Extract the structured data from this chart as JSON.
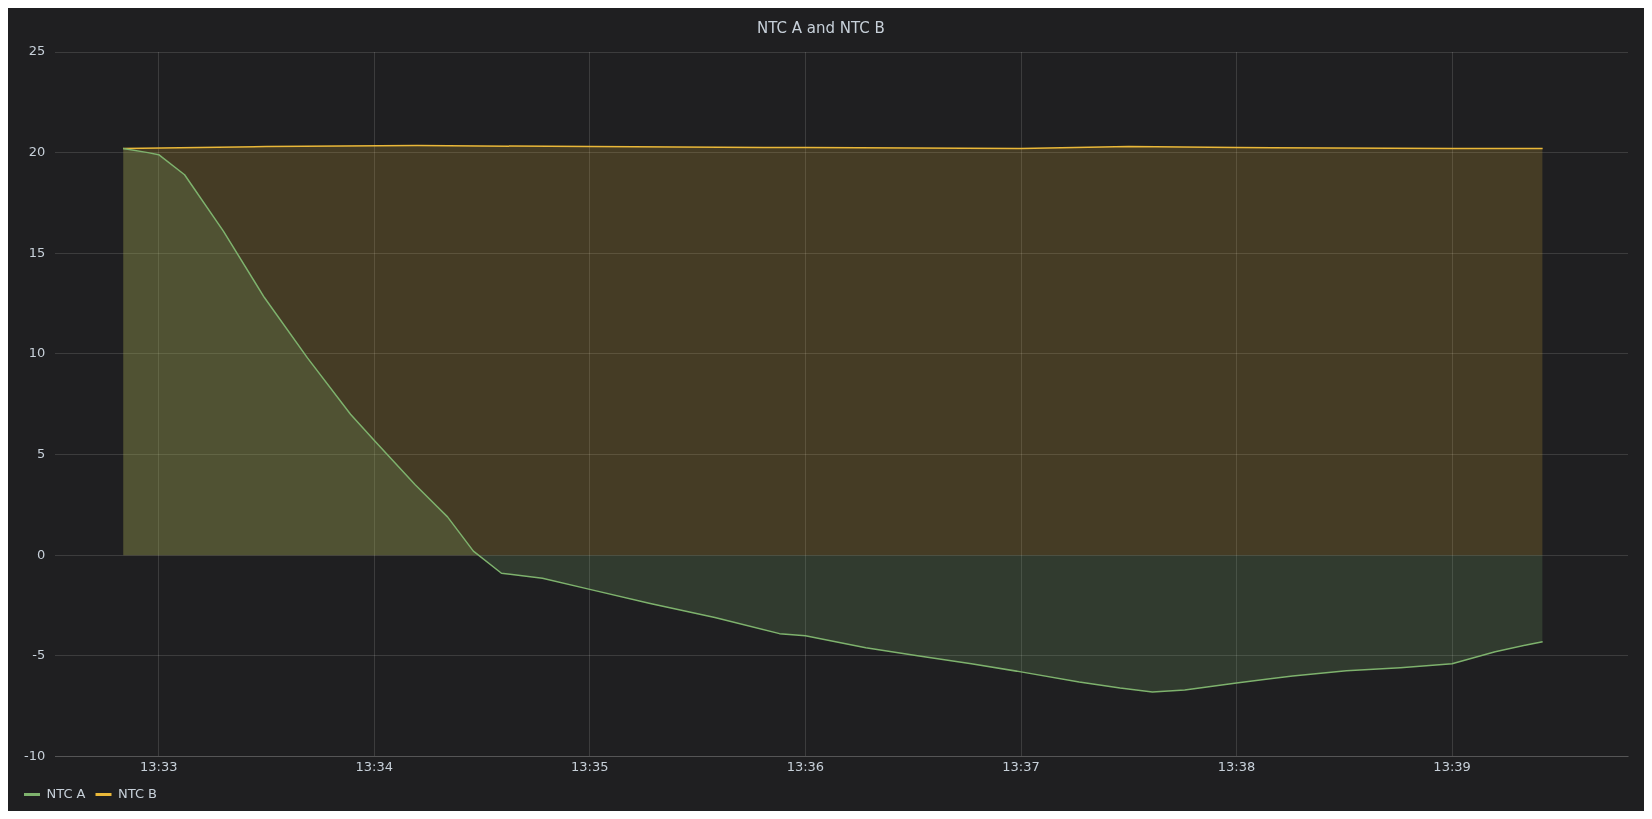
{
  "chart_data": {
    "type": "area",
    "title": "NTC A and NTC B",
    "xlim": [
      13.542,
      13.6636
    ],
    "xticks": [
      {
        "value": 13.55,
        "label": "13:33"
      },
      {
        "value": 13.56667,
        "label": "13:34"
      },
      {
        "value": 13.58333,
        "label": "13:35"
      },
      {
        "value": 13.6,
        "label": "13:36"
      },
      {
        "value": 13.61667,
        "label": "13:37"
      },
      {
        "value": 13.63333,
        "label": "13:38"
      },
      {
        "value": 13.65,
        "label": "13:39"
      }
    ],
    "ylim": [
      -10,
      25
    ],
    "yticks": [
      -10,
      -5,
      0,
      5,
      10,
      15,
      20,
      25
    ],
    "grid": true,
    "legend": "bottom left",
    "marker": "none",
    "series": [
      {
        "name": "NTC A",
        "color": "#7eb26d",
        "x": [
          13.54725,
          13.54917,
          13.55,
          13.552,
          13.555,
          13.55817,
          13.5615,
          13.56483,
          13.56667,
          13.56983,
          13.57233,
          13.57433,
          13.5765,
          13.57967,
          13.58333,
          13.588,
          13.593,
          13.598,
          13.6,
          13.60467,
          13.60867,
          13.61283,
          13.61667,
          13.62117,
          13.62433,
          13.62683,
          13.62933,
          13.63333,
          13.63767,
          13.64183,
          13.646,
          13.65,
          13.65333,
          13.65583,
          13.657
        ],
        "values": [
          20.2,
          20.0,
          19.9,
          18.9,
          16.1,
          12.8,
          9.8,
          7.0,
          5.7,
          3.5,
          1.9,
          0.2,
          -0.9,
          -1.15,
          -1.7,
          -2.4,
          -3.1,
          -3.9,
          -4.0,
          -4.6,
          -5.0,
          -5.4,
          -5.8,
          -6.3,
          -6.6,
          -6.8,
          -6.7,
          -6.35,
          -6.0,
          -5.75,
          -5.6,
          -5.4,
          -4.8,
          -4.45,
          -4.3
        ]
      },
      {
        "name": "NTC B",
        "color": "#eab839",
        "x": [
          13.54725,
          13.55833,
          13.57,
          13.58333,
          13.6,
          13.61667,
          13.625,
          13.63333,
          13.65,
          13.657
        ],
        "values": [
          20.2,
          20.3,
          20.35,
          20.3,
          20.25,
          20.2,
          20.3,
          20.25,
          20.2,
          20.2
        ]
      }
    ]
  }
}
